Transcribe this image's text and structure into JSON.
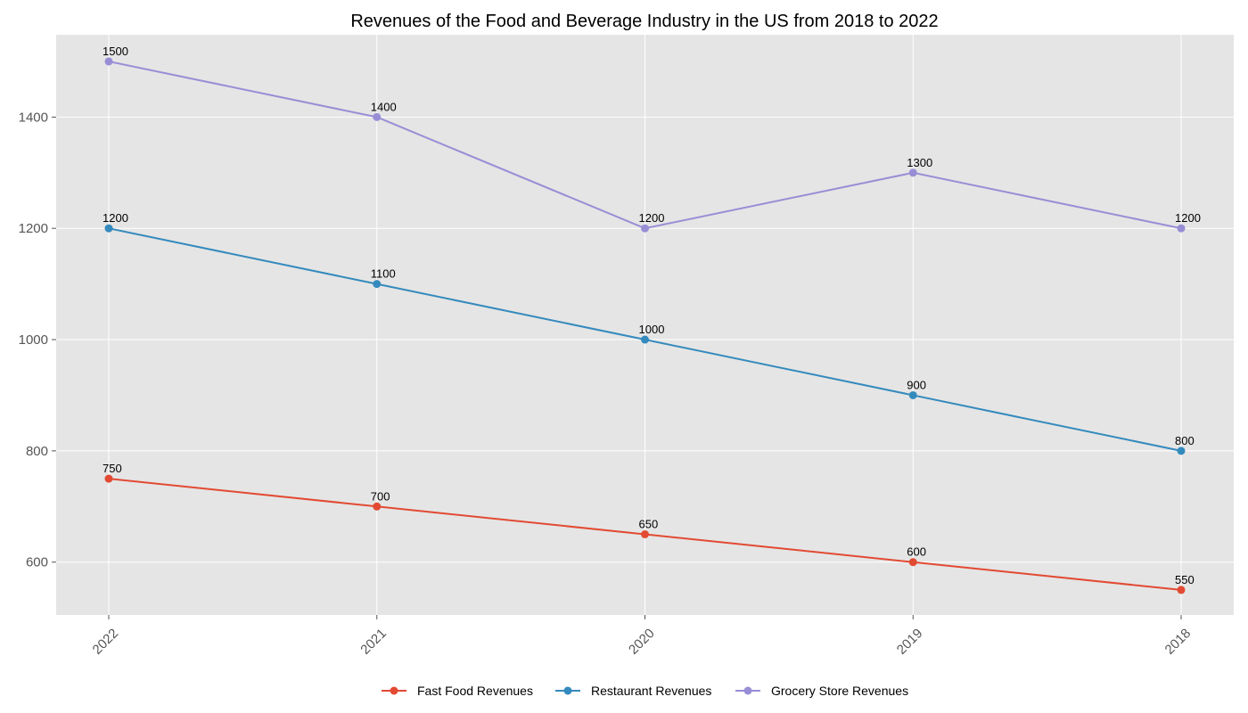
{
  "chart_data": {
    "type": "line",
    "title": "Revenues of the Food and Beverage Industry in the US from 2018 to 2022",
    "xlabel": "",
    "ylabel": "",
    "categories": [
      "2022",
      "2021",
      "2020",
      "2019",
      "2018"
    ],
    "ylim": [
      505,
      1548
    ],
    "yticks": [
      600,
      800,
      1000,
      1200,
      1400
    ],
    "grid": true,
    "legend_position": "bottom-center",
    "background_color": "#e5e5e5",
    "series": [
      {
        "name": "Fast Food Revenues",
        "color": "#e24a33",
        "values": [
          750,
          700,
          650,
          600,
          550
        ]
      },
      {
        "name": "Restaurant Revenues",
        "color": "#348abd",
        "values": [
          1200,
          1100,
          1000,
          900,
          800
        ]
      },
      {
        "name": "Grocery Store Revenues",
        "color": "#988ed5",
        "values": [
          1500,
          1400,
          1200,
          1300,
          1200
        ]
      }
    ]
  }
}
